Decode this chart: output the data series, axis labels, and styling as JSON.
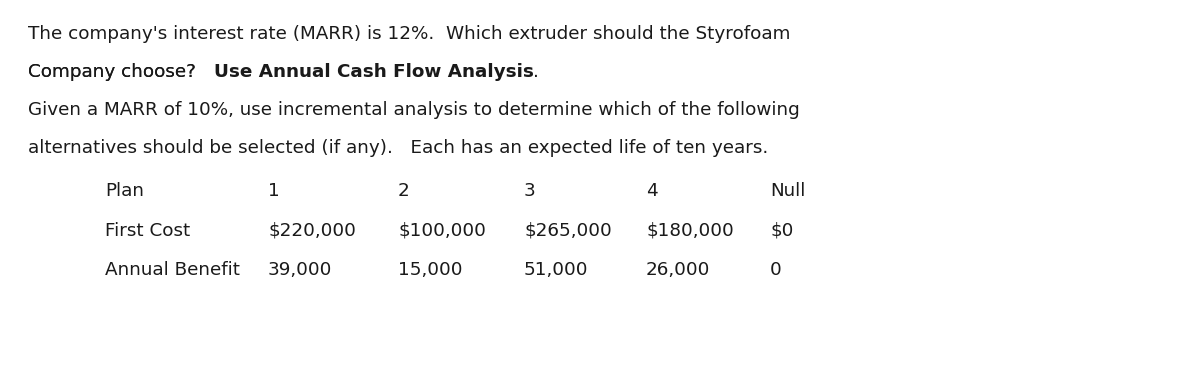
{
  "bg_color": "#ffffff",
  "text_color": "#1a1a1a",
  "line1": "The company's interest rate (MARR) is 12%.  Which extruder should the Styrofoam",
  "line2_plain": "Company choose?   ",
  "line2_bold": "Use Annual Cash Flow Analysis",
  "line2_period": ".",
  "line3": "Given a MARR of 10%, use incremental analysis to determine which of the following",
  "line4": "alternatives should be selected (if any).   Each has an expected life of ten years.",
  "table_headers": [
    "Plan",
    "1",
    "2",
    "3",
    "4",
    "Null"
  ],
  "table_row1_label": "First Cost",
  "table_row1_values": [
    "$220,000",
    "$100,000",
    "$265,000",
    "$180,000",
    "$0"
  ],
  "table_row2_label": "Annual Benefit",
  "table_row2_values": [
    "39,000",
    "15,000",
    "51,000",
    "26,000",
    "0"
  ],
  "font_size": 13.2,
  "font_family": "DejaVu Sans Mono"
}
